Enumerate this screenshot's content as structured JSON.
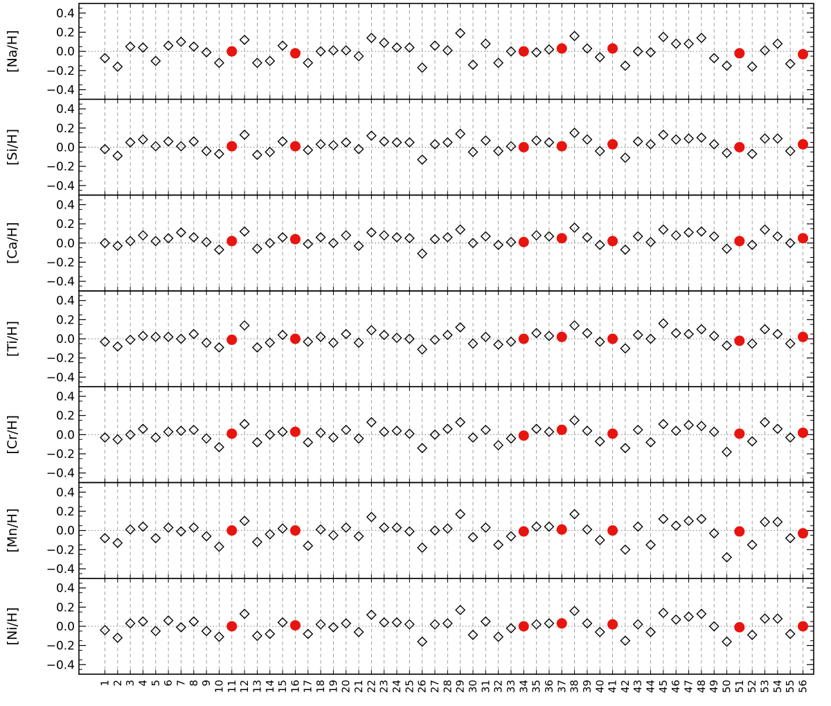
{
  "chart_data": {
    "type": "scatter",
    "categories": [
      "1",
      "2",
      "3",
      "4",
      "5",
      "6",
      "7",
      "8",
      "9",
      "10",
      "11",
      "12",
      "13",
      "14",
      "15",
      "16",
      "17",
      "18",
      "19",
      "20",
      "21",
      "22",
      "23",
      "24",
      "25",
      "26",
      "27",
      "28",
      "29",
      "30",
      "31",
      "32",
      "33",
      "34",
      "35",
      "36",
      "37",
      "38",
      "39",
      "40",
      "41",
      "42",
      "43",
      "44",
      "45",
      "46",
      "47",
      "48",
      "49",
      "50",
      "51",
      "52",
      "53",
      "54",
      "55",
      "56"
    ],
    "highlight_categories": [
      "11",
      "16",
      "34",
      "37",
      "41",
      "51",
      "56"
    ],
    "ylim": [
      -0.5,
      0.5
    ],
    "yticks": [
      -0.4,
      -0.2,
      0.0,
      0.2,
      0.4
    ],
    "ytick_labels": [
      "−0.4",
      "−0.2",
      "0.0",
      "0.2",
      "0.4"
    ],
    "reference_line": 0.0,
    "grid": "vertical dashed lines at each category",
    "colors": {
      "open_marker": "#000000",
      "highlight_marker": "#e8140f",
      "grid": "#888888"
    },
    "panels": [
      {
        "ylabel": "[Na/H]",
        "values": [
          -0.07,
          -0.16,
          0.05,
          0.04,
          -0.1,
          0.06,
          0.1,
          0.05,
          -0.01,
          -0.12,
          0.0,
          0.12,
          -0.12,
          -0.1,
          0.06,
          -0.02,
          -0.12,
          0.0,
          0.01,
          0.01,
          -0.05,
          0.14,
          0.09,
          0.04,
          0.04,
          -0.17,
          0.06,
          0.01,
          0.19,
          -0.14,
          0.08,
          -0.12,
          0.0,
          0.0,
          -0.01,
          0.02,
          0.03,
          0.16,
          0.03,
          -0.06,
          0.03,
          -0.15,
          0.0,
          -0.01,
          0.15,
          0.08,
          0.08,
          0.14,
          -0.07,
          -0.15,
          -0.02,
          -0.16,
          0.01,
          0.08,
          -0.13,
          -0.03
        ]
      },
      {
        "ylabel": "[Si/H]",
        "values": [
          -0.02,
          -0.09,
          0.05,
          0.08,
          0.01,
          0.06,
          0.01,
          0.06,
          -0.04,
          -0.07,
          0.01,
          0.13,
          -0.08,
          -0.05,
          0.06,
          0.01,
          -0.03,
          0.03,
          0.02,
          0.05,
          -0.02,
          0.12,
          0.06,
          0.05,
          0.05,
          -0.13,
          0.03,
          0.05,
          0.14,
          -0.05,
          0.07,
          -0.04,
          0.01,
          0.0,
          0.07,
          0.05,
          0.01,
          0.15,
          0.08,
          -0.04,
          0.03,
          -0.11,
          0.06,
          0.03,
          0.13,
          0.08,
          0.09,
          0.1,
          0.03,
          -0.06,
          0.0,
          -0.07,
          0.09,
          0.09,
          -0.04,
          0.03
        ]
      },
      {
        "ylabel": "[Ca/H]",
        "values": [
          0.0,
          -0.03,
          0.02,
          0.08,
          0.02,
          0.05,
          0.11,
          0.06,
          0.01,
          -0.07,
          0.02,
          0.12,
          -0.06,
          0.0,
          0.06,
          0.04,
          -0.01,
          0.06,
          0.0,
          0.08,
          -0.03,
          0.11,
          0.08,
          0.06,
          0.05,
          -0.11,
          0.04,
          0.06,
          0.14,
          0.0,
          0.07,
          -0.02,
          0.01,
          0.01,
          0.08,
          0.07,
          0.05,
          0.16,
          0.06,
          -0.02,
          0.02,
          -0.07,
          0.07,
          0.01,
          0.14,
          0.08,
          0.11,
          0.12,
          0.07,
          -0.06,
          0.02,
          -0.02,
          0.14,
          0.07,
          0.0,
          0.05
        ]
      },
      {
        "ylabel": "[Ti/H]",
        "values": [
          -0.03,
          -0.08,
          -0.01,
          0.03,
          0.02,
          0.02,
          0.0,
          0.05,
          -0.04,
          -0.09,
          -0.01,
          0.14,
          -0.09,
          -0.04,
          0.04,
          0.0,
          -0.03,
          0.02,
          -0.04,
          0.05,
          -0.04,
          0.09,
          0.04,
          0.01,
          0.0,
          -0.11,
          -0.01,
          0.04,
          0.12,
          -0.05,
          0.02,
          -0.06,
          -0.03,
          0.0,
          0.06,
          0.03,
          0.02,
          0.14,
          0.06,
          -0.03,
          0.0,
          -0.1,
          0.04,
          0.0,
          0.16,
          0.06,
          0.05,
          0.1,
          0.03,
          -0.07,
          -0.02,
          -0.05,
          0.1,
          0.05,
          -0.05,
          0.02
        ]
      },
      {
        "ylabel": "[Cr/H]",
        "values": [
          -0.03,
          -0.05,
          0.0,
          0.06,
          -0.03,
          0.03,
          0.04,
          0.05,
          -0.04,
          -0.13,
          0.01,
          0.11,
          -0.08,
          0.0,
          0.03,
          0.03,
          -0.08,
          0.02,
          -0.03,
          0.05,
          -0.04,
          0.13,
          0.03,
          0.04,
          0.01,
          -0.14,
          0.0,
          0.06,
          0.13,
          -0.03,
          0.05,
          -0.11,
          -0.04,
          -0.01,
          0.06,
          0.03,
          0.05,
          0.15,
          0.04,
          -0.07,
          0.01,
          -0.14,
          0.05,
          -0.08,
          0.11,
          0.04,
          0.1,
          0.09,
          0.03,
          -0.18,
          0.01,
          -0.07,
          0.13,
          0.06,
          -0.03,
          0.02
        ]
      },
      {
        "ylabel": "[Mn/H]",
        "values": [
          -0.08,
          -0.13,
          0.01,
          0.04,
          -0.08,
          0.03,
          -0.01,
          0.03,
          -0.06,
          -0.17,
          0.0,
          0.1,
          -0.12,
          -0.04,
          0.02,
          0.0,
          -0.16,
          0.01,
          -0.05,
          0.03,
          -0.06,
          0.14,
          0.03,
          0.03,
          -0.01,
          -0.18,
          0.0,
          0.02,
          0.17,
          -0.07,
          0.03,
          -0.15,
          -0.06,
          -0.01,
          0.04,
          0.04,
          0.01,
          0.17,
          0.01,
          -0.1,
          0.0,
          -0.2,
          0.04,
          -0.15,
          0.12,
          0.05,
          0.1,
          0.12,
          -0.03,
          -0.28,
          -0.01,
          -0.15,
          0.09,
          0.09,
          -0.08,
          -0.03
        ]
      },
      {
        "ylabel": "[Ni/H]",
        "values": [
          -0.04,
          -0.12,
          0.03,
          0.05,
          -0.05,
          0.06,
          -0.01,
          0.05,
          -0.05,
          -0.11,
          0.0,
          0.13,
          -0.1,
          -0.08,
          0.04,
          0.01,
          -0.08,
          0.02,
          -0.01,
          0.03,
          -0.06,
          0.12,
          0.04,
          0.04,
          0.02,
          -0.16,
          0.02,
          0.03,
          0.17,
          -0.09,
          0.05,
          -0.11,
          -0.02,
          0.0,
          0.02,
          0.03,
          0.03,
          0.16,
          0.03,
          -0.06,
          0.02,
          -0.15,
          0.02,
          -0.06,
          0.14,
          0.07,
          0.1,
          0.13,
          0.0,
          -0.16,
          -0.01,
          -0.09,
          0.08,
          0.08,
          -0.08,
          0.0
        ]
      }
    ]
  }
}
